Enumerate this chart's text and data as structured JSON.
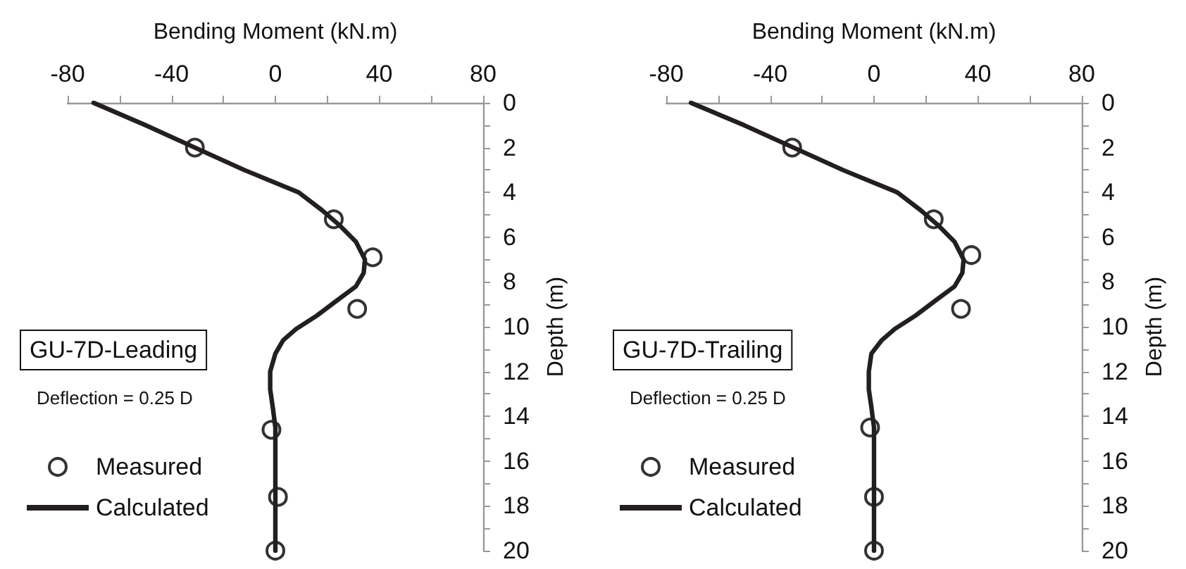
{
  "chart_data": [
    {
      "type": "line",
      "xlabel": "Bending Moment (kN.m)",
      "ylabel": "Depth (m)",
      "annotations": [
        "GU-7D-Leading",
        "Deflection = 0.25 D"
      ],
      "xlim": [
        -80,
        80
      ],
      "xticks": [
        -80,
        {
          "value": -60,
          "label": null
        },
        -40,
        {
          "value": -20,
          "label": null
        },
        0,
        {
          "value": 20,
          "label": null
        },
        40,
        {
          "value": 60,
          "label": null
        },
        80
      ],
      "ylim": [
        20,
        0
      ],
      "yticks": [
        0,
        {
          "value": 1,
          "label": null
        },
        2,
        {
          "value": 3,
          "label": null
        },
        4,
        {
          "value": 5,
          "label": null
        },
        6,
        {
          "value": 7,
          "label": null
        },
        8,
        {
          "value": 9,
          "label": null
        },
        10,
        {
          "value": 11,
          "label": null
        },
        12,
        {
          "value": 13,
          "label": null
        },
        14,
        {
          "value": 15,
          "label": null
        },
        16,
        {
          "value": 17,
          "label": null
        },
        18,
        {
          "value": 19,
          "label": null
        },
        20
      ],
      "grid": false,
      "legend": "bottom left",
      "series": [
        {
          "name": "Measured",
          "type": "scatter",
          "marker": "circle",
          "color": "#000000",
          "x": [
            -31,
            22.5,
            37.5,
            31.5,
            -1.5,
            1,
            0
          ],
          "values": [
            2,
            5.2,
            6.9,
            9.2,
            14.6,
            17.6,
            20
          ]
        },
        {
          "name": "Calculated",
          "marker": "none",
          "color": "#231f20",
          "x": [
            -70,
            -50,
            -31,
            -12,
            9,
            18,
            25,
            31,
            34.5,
            34,
            31,
            24,
            16,
            8,
            3,
            0,
            -2,
            -2,
            -1,
            0,
            0,
            0,
            0
          ],
          "values": [
            0,
            1,
            2,
            3,
            4,
            4.8,
            5.5,
            6.2,
            7,
            7.6,
            8.2,
            8.8,
            9.5,
            10.1,
            10.6,
            11.2,
            12,
            12.8,
            13.6,
            14.5,
            16,
            18,
            20
          ]
        }
      ]
    },
    {
      "type": "line",
      "xlabel": "Bending Moment (kN.m)",
      "ylabel": "Depth (m)",
      "annotations": [
        "GU-7D-Trailing",
        "Deflection = 0.25 D"
      ],
      "xlim": [
        -80,
        80
      ],
      "xticks": [
        -80,
        {
          "value": -60,
          "label": null
        },
        -40,
        {
          "value": -20,
          "label": null
        },
        0,
        {
          "value": 20,
          "label": null
        },
        40,
        {
          "value": 60,
          "label": null
        },
        80
      ],
      "ylim": [
        20,
        0
      ],
      "yticks": [
        0,
        {
          "value": 1,
          "label": null
        },
        2,
        {
          "value": 3,
          "label": null
        },
        4,
        {
          "value": 5,
          "label": null
        },
        6,
        {
          "value": 7,
          "label": null
        },
        8,
        {
          "value": 9,
          "label": null
        },
        10,
        {
          "value": 11,
          "label": null
        },
        12,
        {
          "value": 13,
          "label": null
        },
        14,
        {
          "value": 15,
          "label": null
        },
        16,
        {
          "value": 17,
          "label": null
        },
        18,
        {
          "value": 19,
          "label": null
        },
        20
      ],
      "grid": false,
      "legend": "bottom left",
      "series": [
        {
          "name": "Measured",
          "type": "scatter",
          "marker": "circle",
          "color": "#000000",
          "x": [
            -31.5,
            23,
            37.5,
            33.5,
            -1.5,
            0,
            0
          ],
          "values": [
            2,
            5.2,
            6.8,
            9.2,
            14.5,
            17.6,
            20
          ]
        },
        {
          "name": "Calculated",
          "marker": "none",
          "color": "#231f20",
          "x": [
            -70.5,
            -50,
            -31,
            -12,
            9,
            18,
            25,
            31,
            34.5,
            34,
            31,
            24,
            16,
            8,
            3,
            -1,
            -2,
            -2,
            -1,
            0,
            0,
            0,
            0
          ],
          "values": [
            0,
            1,
            2,
            3,
            4,
            4.8,
            5.5,
            6.2,
            7,
            7.6,
            8.2,
            8.8,
            9.5,
            10.1,
            10.6,
            11.2,
            12,
            12.8,
            13.6,
            14.5,
            16,
            18,
            20
          ]
        }
      ]
    }
  ]
}
